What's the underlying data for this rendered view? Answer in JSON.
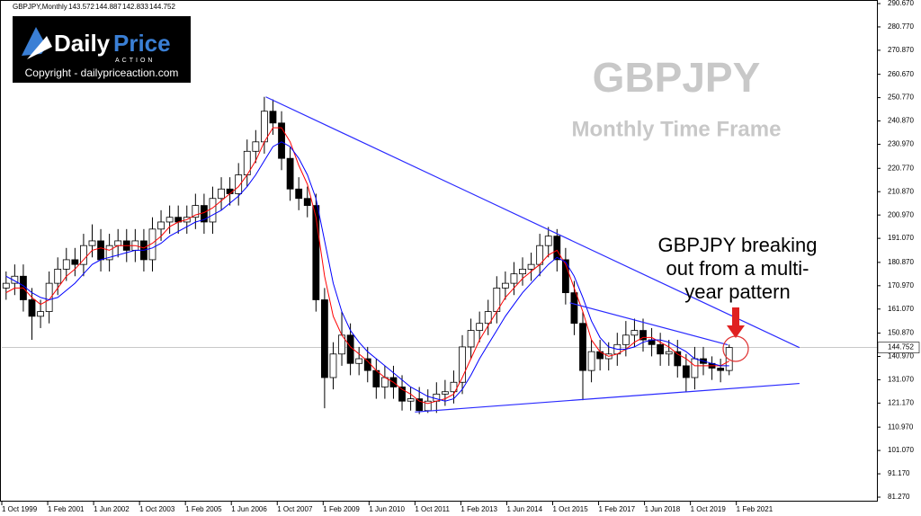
{
  "header": {
    "symbol": "GBPJPY,Monthly",
    "ohlc": [
      143.572,
      144.887,
      142.833,
      144.752
    ]
  },
  "logo": {
    "brand_a": "Daily",
    "brand_b": "Price",
    "tagline": "ACTION",
    "copyright": "Copyright - dailypriceaction.com"
  },
  "watermark": {
    "title": "GBPJPY",
    "subtitle": "Monthly Time Frame"
  },
  "annotation": {
    "lines": [
      "GBPJPY breaking",
      "out from a multi-",
      "year pattern"
    ]
  },
  "chart_data": {
    "type": "candlestick",
    "x": [
      "1 Oct 1999",
      "1 Jan 2000",
      "1 Apr 2000",
      "1 Jul 2000",
      "1 Oct 2000",
      "1 Jan 2001",
      "1 Apr 2001",
      "1 Jul 2001",
      "1 Oct 2001",
      "1 Jan 2002",
      "1 Apr 2002",
      "1 Jul 2002",
      "1 Oct 2002",
      "1 Jan 2003",
      "1 Apr 2003",
      "1 Jul 2003",
      "1 Oct 2003",
      "1 Jan 2004",
      "1 Apr 2004",
      "1 Jul 2004",
      "1 Oct 2004",
      "1 Jan 2005",
      "1 Apr 2005",
      "1 Jul 2005",
      "1 Oct 2005",
      "1 Jan 2006",
      "1 Apr 2006",
      "1 Jul 2006",
      "1 Oct 2006",
      "1 Jan 2007",
      "1 Apr 2007",
      "1 Jul 2007",
      "1 Oct 2007",
      "1 Jan 2008",
      "1 Apr 2008",
      "1 Jul 2008",
      "1 Oct 2008",
      "1 Jan 2009",
      "1 Apr 2009",
      "1 Jul 2009",
      "1 Oct 2009",
      "1 Jan 2010",
      "1 Apr 2010",
      "1 Jul 2010",
      "1 Oct 2010",
      "1 Jan 2011",
      "1 Apr 2011",
      "1 Jul 2011",
      "1 Oct 2011",
      "1 Jan 2012",
      "1 Apr 2012",
      "1 Jul 2012",
      "1 Oct 2012",
      "1 Jan 2013",
      "1 Apr 2013",
      "1 Jul 2013",
      "1 Oct 2013",
      "1 Jan 2014",
      "1 Apr 2014",
      "1 Jul 2014",
      "1 Oct 2014",
      "1 Jan 2015",
      "1 Apr 2015",
      "1 Jul 2015",
      "1 Oct 2015",
      "1 Jan 2016",
      "1 Apr 2016",
      "1 Jul 2016",
      "1 Oct 2016",
      "1 Jan 2017",
      "1 Apr 2017",
      "1 Jul 2017",
      "1 Oct 2017",
      "1 Jan 2018",
      "1 Apr 2018",
      "1 Jul 2018",
      "1 Oct 2018",
      "1 Jan 2019",
      "1 Apr 2019",
      "1 Jul 2019",
      "1 Oct 2019",
      "1 Jan 2020",
      "1 Apr 2020",
      "1 Jul 2020",
      "1 Oct 2020"
    ],
    "open": [
      170,
      172,
      175,
      165,
      158,
      160,
      172,
      178,
      182,
      180,
      188,
      190,
      182,
      188,
      190,
      186,
      190,
      182,
      195,
      198,
      200,
      198,
      200,
      205,
      198,
      208,
      212,
      210,
      218,
      228,
      232,
      245,
      240,
      225,
      212,
      208,
      205,
      165,
      132,
      142,
      150,
      138,
      140,
      135,
      128,
      132,
      128,
      122,
      123,
      118,
      122,
      125,
      126,
      130,
      145,
      152,
      155,
      160,
      170,
      172,
      176,
      178,
      180,
      188,
      192,
      182,
      168,
      155,
      135,
      143,
      140,
      142,
      146,
      150,
      152,
      148,
      146,
      142,
      143,
      137,
      132,
      140,
      138,
      136,
      135
    ],
    "high": [
      177,
      180,
      180,
      170,
      165,
      177,
      183,
      187,
      187,
      193,
      197,
      195,
      193,
      195,
      195,
      195,
      195,
      200,
      203,
      205,
      205,
      205,
      210,
      210,
      213,
      217,
      217,
      223,
      233,
      237,
      251.1,
      250,
      245,
      230,
      217,
      213,
      210,
      170,
      147,
      160,
      155,
      145,
      145,
      140,
      137,
      137,
      133,
      128,
      128,
      127,
      130,
      131,
      135,
      150,
      157,
      160,
      165,
      175,
      177,
      181,
      183,
      185,
      193,
      195.9,
      195,
      187,
      173,
      160,
      148,
      148,
      147,
      151,
      156,
      157,
      157,
      153,
      151,
      148,
      148,
      142,
      145,
      145,
      141,
      140,
      146
    ],
    "low": [
      165,
      167,
      160,
      148,
      153,
      155,
      167,
      173,
      175,
      175,
      183,
      177,
      177,
      183,
      181,
      181,
      177,
      177,
      190,
      193,
      193,
      193,
      195,
      193,
      193,
      203,
      205,
      205,
      213,
      223,
      227,
      235,
      220,
      207,
      203,
      200,
      160,
      119,
      127,
      137,
      133,
      133,
      130,
      123,
      123,
      123,
      118,
      118,
      116.5,
      117,
      117,
      120,
      121,
      125,
      140,
      147,
      150,
      155,
      165,
      167,
      171,
      173,
      175,
      183,
      177,
      163,
      150,
      122.4,
      130,
      135,
      135,
      137,
      141,
      145,
      143,
      141,
      137,
      137,
      132,
      126,
      127,
      133,
      131,
      130,
      133
    ],
    "close": [
      172,
      175,
      165,
      158,
      160,
      172,
      178,
      182,
      180,
      188,
      190,
      182,
      188,
      190,
      186,
      190,
      182,
      195,
      198,
      200,
      198,
      200,
      205,
      198,
      208,
      212,
      210,
      218,
      228,
      232,
      245,
      240,
      225,
      212,
      208,
      205,
      165,
      132,
      142,
      150,
      138,
      140,
      135,
      128,
      132,
      128,
      122,
      123,
      118,
      122,
      125,
      126,
      130,
      145,
      152,
      155,
      160,
      170,
      172,
      176,
      178,
      180,
      188,
      192,
      182,
      168,
      155,
      135,
      143,
      140,
      142,
      146,
      150,
      152,
      148,
      146,
      142,
      143,
      137,
      132,
      140,
      138,
      136,
      135,
      144.752
    ],
    "up_color": "#ffffff",
    "down_color": "#000000",
    "moving_averages": [
      {
        "color": "#ff0000",
        "values": [
          168,
          170,
          170,
          166,
          163,
          165,
          170,
          175,
          178,
          182,
          186,
          187,
          186,
          188,
          188,
          188,
          187,
          189,
          192,
          196,
          198,
          199,
          201,
          202,
          204,
          207,
          210,
          213,
          218,
          224,
          232,
          238,
          238,
          232,
          222,
          214,
          200,
          175,
          158,
          150,
          145,
          142,
          139,
          135,
          132,
          130,
          127,
          125,
          122,
          121,
          122,
          123,
          125,
          132,
          140,
          148,
          154,
          160,
          166,
          170,
          174,
          177,
          180,
          184,
          186,
          180,
          170,
          160,
          148,
          143,
          141,
          142,
          144,
          147,
          149,
          149,
          147,
          145,
          142,
          140,
          137,
          137,
          137,
          137,
          139
        ]
      },
      {
        "color": "#0000ff",
        "values": [
          175,
          173,
          171,
          168,
          166,
          165,
          166,
          169,
          172,
          176,
          180,
          182,
          183,
          184,
          185,
          186,
          186,
          187,
          189,
          192,
          194,
          196,
          198,
          199,
          201,
          203,
          206,
          209,
          213,
          218,
          224,
          230,
          232,
          230,
          225,
          218,
          208,
          190,
          172,
          160,
          152,
          147,
          143,
          140,
          137,
          134,
          131,
          128,
          126,
          124,
          123,
          122,
          123,
          127,
          133,
          140,
          146,
          152,
          158,
          163,
          168,
          172,
          176,
          180,
          183,
          181,
          175,
          166,
          156,
          149,
          145,
          144,
          144,
          145,
          147,
          148,
          148,
          147,
          145,
          143,
          140,
          139,
          138,
          137,
          137
        ]
      }
    ],
    "trendlines": [
      {
        "color": "#2a2aff",
        "x": [
          "1 Jun 2007",
          "1 Dec 2022"
        ],
        "y": [
          251.1,
          144.7
        ]
      },
      {
        "color": "#2a2aff",
        "x": [
          "1 Oct 2011",
          "1 Dec 2022"
        ],
        "y": [
          117.4,
          129.5
        ]
      },
      {
        "color": "#2a2aff",
        "x": [
          "1 Apr 2016",
          "1 Nov 2020"
        ],
        "y": [
          163.7,
          145.9
        ]
      }
    ],
    "last_price": 144.752,
    "xlim": [
      "1 Oct 1999",
      "1 Mar 2025"
    ],
    "ylim": [
      79.37,
      292.19
    ],
    "xticks": [
      "1 Oct 1999",
      "1 Feb 2001",
      "1 Jun 2002",
      "1 Oct 2003",
      "1 Feb 2005",
      "1 Jun 2006",
      "1 Oct 2007",
      "1 Feb 2009",
      "1 Jun 2010",
      "1 Oct 2011",
      "1 Feb 2013",
      "1 Jun 2014",
      "1 Oct 2015",
      "1 Feb 2017",
      "1 Jun 2018",
      "1 Oct 2019",
      "1 Feb 2021"
    ],
    "yticks": [
      {
        "value": 290.67,
        "label": "290.670"
      },
      {
        "value": 280.77,
        "label": "280.770"
      },
      {
        "value": 270.87,
        "label": "270.870"
      },
      {
        "value": 260.67,
        "label": "260.670"
      },
      {
        "value": 250.77,
        "label": "250.770"
      },
      {
        "value": 240.87,
        "label": "240.870"
      },
      {
        "value": 230.97,
        "label": "230.970"
      },
      {
        "value": 220.77,
        "label": "220.770"
      },
      {
        "value": 210.87,
        "label": "210.870"
      },
      {
        "value": 200.97,
        "label": "200.970"
      },
      {
        "value": 191.07,
        "label": "191.070"
      },
      {
        "value": 180.87,
        "label": "180.870"
      },
      {
        "value": 170.97,
        "label": "170.970"
      },
      {
        "value": 161.07,
        "label": "161.070"
      },
      {
        "value": 150.87,
        "label": "150.870"
      },
      {
        "value": 140.97,
        "label": "140.970"
      },
      {
        "value": 131.07,
        "label": "131.070"
      },
      {
        "value": 121.17,
        "label": "121.170"
      },
      {
        "value": 110.97,
        "label": "110.970"
      },
      {
        "value": 101.07,
        "label": "101.070"
      },
      {
        "value": 91.17,
        "label": "91.170"
      },
      {
        "value": 81.27,
        "label": "81.270"
      }
    ]
  }
}
